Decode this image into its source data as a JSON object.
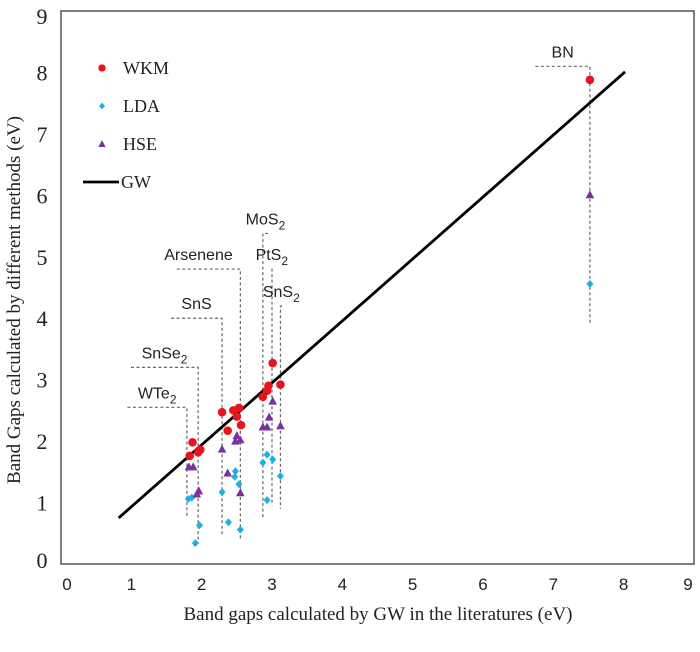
{
  "chart_data": {
    "type": "scatter",
    "title": "",
    "xlabel": "Band gaps calculated by GW in the literatures (eV)",
    "ylabel": "Band Gaps calculated by different methods (eV)",
    "xlim": [
      0,
      9
    ],
    "ylim": [
      0,
      9
    ],
    "xticks": [
      "0",
      "1",
      "2",
      "3",
      "4",
      "5",
      "6",
      "7",
      "8",
      "9"
    ],
    "yticks": [
      "0",
      "1",
      "2",
      "3",
      "4",
      "5",
      "6",
      "7",
      "8",
      "9"
    ],
    "grid": false,
    "legend_position": "top-left",
    "legend": [
      {
        "name": "WKM",
        "marker": "circle",
        "color": "#e8141b"
      },
      {
        "name": "LDA",
        "marker": "diamond",
        "color": "#1ab0e8"
      },
      {
        "name": "HSE",
        "marker": "triangle",
        "color": "#7b2fa0"
      },
      {
        "name": "GW",
        "marker": "line",
        "color": "#000000"
      }
    ],
    "gw_line": {
      "x": [
        0.82,
        8.02
      ],
      "y": [
        0.75,
        8.01
      ]
    },
    "series": [
      {
        "name": "WKM",
        "marker": "circle",
        "color": "#e8141b",
        "points": [
          [
            1.87,
            1.98
          ],
          [
            1.83,
            1.76
          ],
          [
            1.95,
            1.82
          ],
          [
            1.98,
            1.86
          ],
          [
            2.29,
            2.47
          ],
          [
            2.45,
            2.5
          ],
          [
            2.53,
            2.54
          ],
          [
            2.5,
            2.4
          ],
          [
            2.37,
            2.17
          ],
          [
            2.56,
            2.26
          ],
          [
            2.87,
            2.72
          ],
          [
            2.93,
            2.82
          ],
          [
            2.95,
            2.9
          ],
          [
            3.01,
            3.27
          ],
          [
            3.12,
            2.92
          ],
          [
            7.52,
            7.88
          ]
        ]
      },
      {
        "name": "LDA",
        "marker": "diamond",
        "color": "#1ab0e8",
        "points": [
          [
            1.81,
            1.06
          ],
          [
            1.86,
            1.08
          ],
          [
            1.97,
            0.63
          ],
          [
            1.91,
            0.34
          ],
          [
            2.29,
            1.17
          ],
          [
            2.38,
            0.68
          ],
          [
            2.48,
            1.51
          ],
          [
            2.47,
            1.42
          ],
          [
            2.53,
            1.3
          ],
          [
            2.55,
            0.56
          ],
          [
            2.87,
            1.65
          ],
          [
            2.93,
            1.78
          ],
          [
            3.01,
            1.7
          ],
          [
            2.93,
            1.04
          ],
          [
            3.12,
            1.43
          ],
          [
            7.52,
            4.56
          ]
        ]
      },
      {
        "name": "HSE",
        "marker": "triangle",
        "color": "#7b2fa0",
        "points": [
          [
            1.82,
            1.58
          ],
          [
            1.88,
            1.58
          ],
          [
            1.96,
            1.19
          ],
          [
            1.93,
            1.14
          ],
          [
            2.29,
            1.87
          ],
          [
            2.37,
            1.48
          ],
          [
            2.5,
            2.09
          ],
          [
            2.48,
            2.0
          ],
          [
            2.55,
            2.02
          ],
          [
            2.55,
            1.16
          ],
          [
            2.87,
            2.23
          ],
          [
            2.93,
            2.23
          ],
          [
            2.96,
            2.39
          ],
          [
            3.01,
            2.65
          ],
          [
            3.12,
            2.25
          ],
          [
            7.52,
            6.01
          ]
        ]
      }
    ],
    "annotations": [
      {
        "label": "WTe",
        "sub": "2",
        "x_gw": 1.79,
        "bracket_top": 2.55,
        "bottom": 0.75,
        "label_x": 1.3
      },
      {
        "label": "SnSe",
        "sub": "2",
        "x_gw": 1.95,
        "bracket_top": 3.2,
        "bottom": 0.34,
        "label_x": 1.35
      },
      {
        "label": "SnS",
        "sub": "",
        "x_gw": 2.29,
        "bracket_top": 4.0,
        "bottom": 0.45,
        "label_x": 1.92
      },
      {
        "label": "Arsenene",
        "sub": "",
        "x_gw": 2.55,
        "bracket_top": 4.8,
        "bottom": 0.38,
        "label_x": 2.0
      },
      {
        "label": "MoS",
        "sub": "2",
        "x_gw": 2.87,
        "bracket_top": 5.38,
        "bottom": 0.75,
        "label_x": 3.3
      },
      {
        "label": "PtS",
        "sub": "2",
        "x_gw": 3.0,
        "bracket_top": 4.8,
        "bottom": 0.95,
        "label_x": 3.35
      },
      {
        "label": "SnS",
        "sub": "2",
        "x_gw": 3.12,
        "bracket_top": 4.2,
        "bottom": 0.9,
        "label_x": 3.5
      },
      {
        "label": "BN",
        "sub": "",
        "x_gw": 7.52,
        "bracket_top": 8.1,
        "bottom": 3.9,
        "label_x": 7.1
      }
    ]
  }
}
